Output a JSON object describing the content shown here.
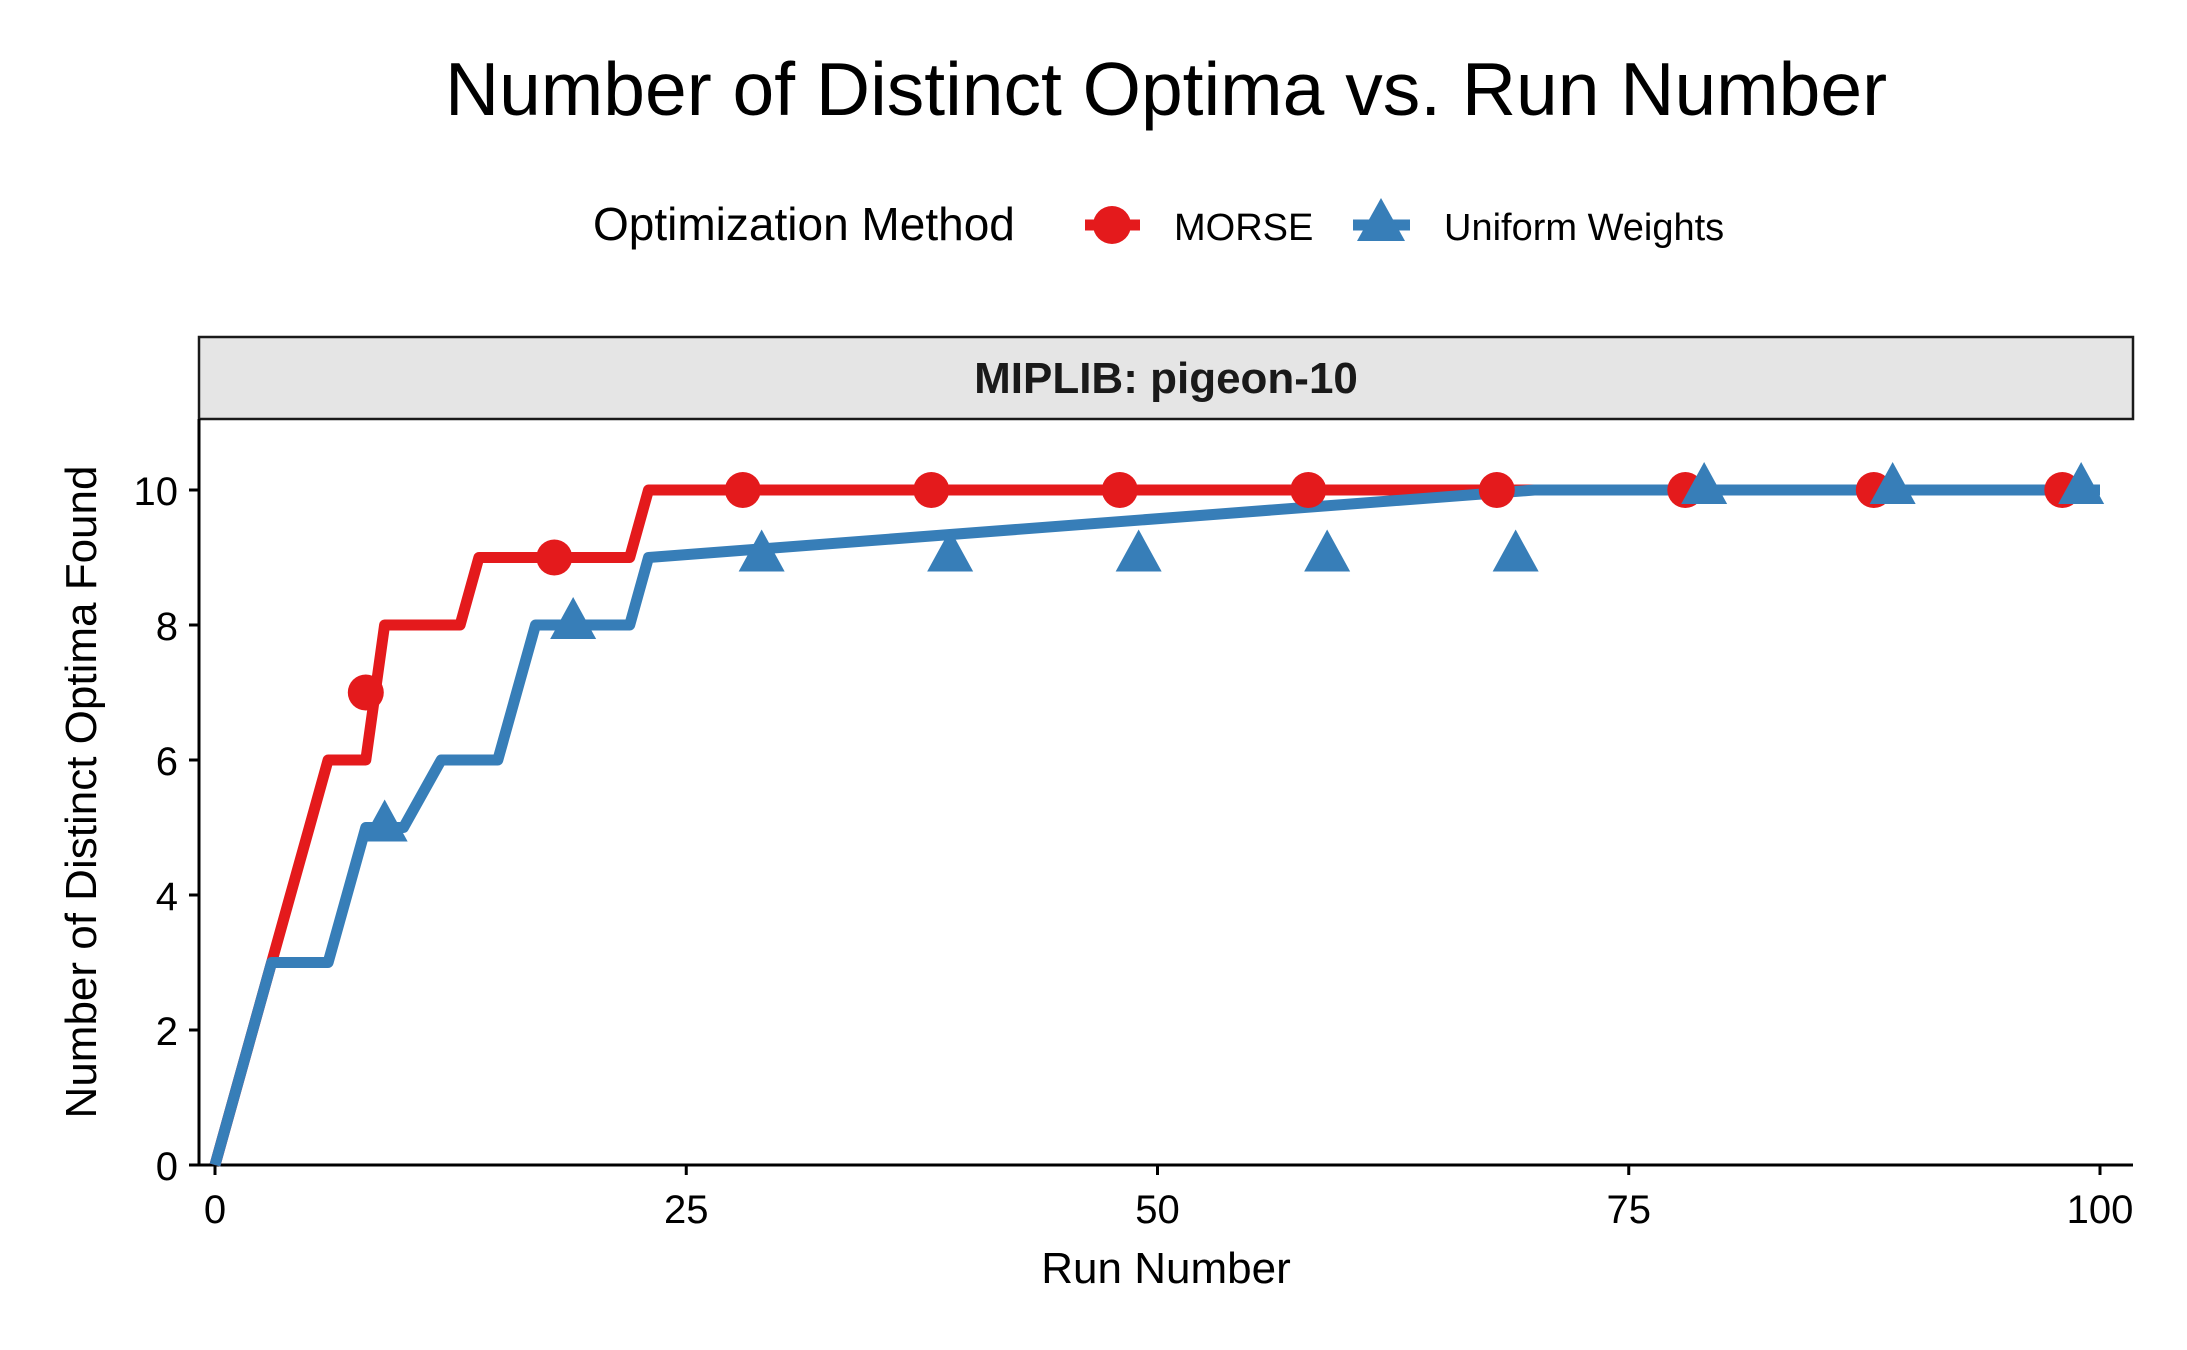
{
  "title": "Number of Distinct Optima vs. Run Number",
  "legend": {
    "title": "Optimization Method",
    "position": "top",
    "entries": [
      {
        "name": "MORSE",
        "color": "#e41a1c",
        "shape": "circle"
      },
      {
        "name": "Uniform Weights",
        "color": "#377eb8",
        "shape": "triangle"
      }
    ]
  },
  "panel": {
    "strip_label": "MIPLIB: pigeon-10"
  },
  "chart_data": {
    "type": "line",
    "title": "Number of Distinct Optima vs. Run Number",
    "xlabel": "Run Number",
    "ylabel": "Number of Distinct Optima Found",
    "xlim": [
      0,
      100
    ],
    "ylim": [
      0,
      10
    ],
    "xticks": [
      0,
      25,
      50,
      75,
      100
    ],
    "yticks": [
      0,
      2,
      4,
      6,
      8,
      10
    ],
    "grid": false,
    "line_style": "step",
    "series": [
      {
        "name": "MORSE",
        "color": "#e41a1c",
        "marker": "circle",
        "x": [
          0,
          3,
          4,
          5,
          6,
          8,
          9,
          13,
          14,
          17,
          21,
          22,
          23,
          100
        ],
        "y": [
          0,
          3,
          4,
          5,
          6,
          6,
          8,
          8,
          9,
          9,
          9,
          9,
          10,
          10
        ],
        "marker_points": [
          [
            8,
            7
          ],
          [
            18,
            9
          ],
          [
            28,
            10
          ],
          [
            38,
            10
          ],
          [
            48,
            10
          ],
          [
            58,
            10
          ],
          [
            68,
            10
          ],
          [
            78,
            10
          ],
          [
            88,
            10
          ],
          [
            98,
            10
          ]
        ]
      },
      {
        "name": "Uniform Weights",
        "color": "#377eb8",
        "marker": "triangle",
        "x": [
          0,
          3,
          6,
          8,
          10,
          12,
          15,
          17,
          22,
          23,
          70,
          100
        ],
        "y": [
          0,
          3,
          3,
          5,
          5,
          6,
          6,
          8,
          8,
          9,
          10,
          10
        ],
        "marker_points": [
          [
            9,
            5
          ],
          [
            19,
            8
          ],
          [
            29,
            9
          ],
          [
            39,
            9
          ],
          [
            49,
            9
          ],
          [
            59,
            9
          ],
          [
            69,
            9
          ],
          [
            79,
            10
          ],
          [
            89,
            10
          ],
          [
            99,
            10
          ]
        ]
      }
    ]
  }
}
